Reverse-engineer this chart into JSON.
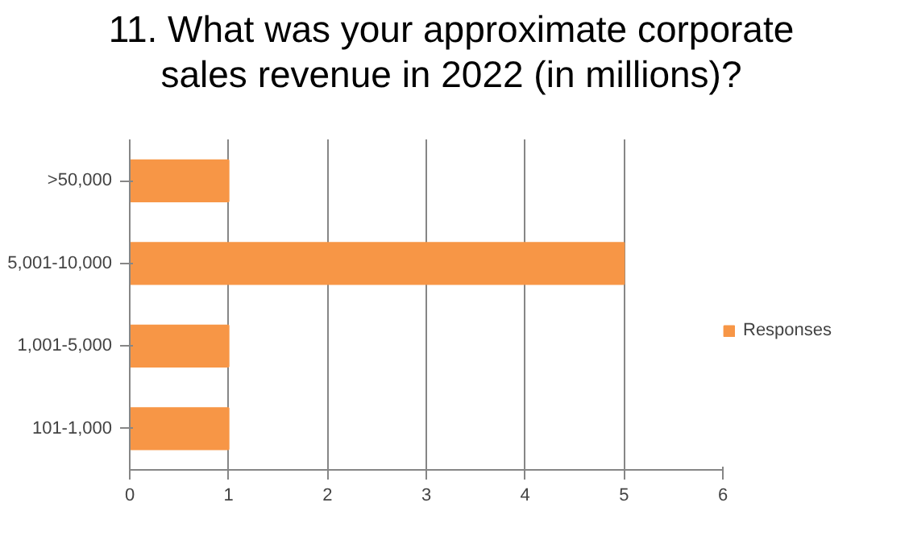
{
  "chart_data": {
    "type": "bar",
    "orientation": "horizontal",
    "title": "11. What was your approximate corporate sales revenue in 2022 (in millions)?",
    "categories": [
      ">50,000",
      "5,001-10,000",
      "1,001-5,000",
      "101-1,000"
    ],
    "series": [
      {
        "name": "Responses",
        "color": "#f79646",
        "values": [
          1,
          5,
          1,
          1
        ]
      }
    ],
    "xlim": [
      0,
      6
    ],
    "xticks": [
      0,
      1,
      2,
      3,
      4,
      5,
      6
    ],
    "grid": "x",
    "legend": "right"
  }
}
